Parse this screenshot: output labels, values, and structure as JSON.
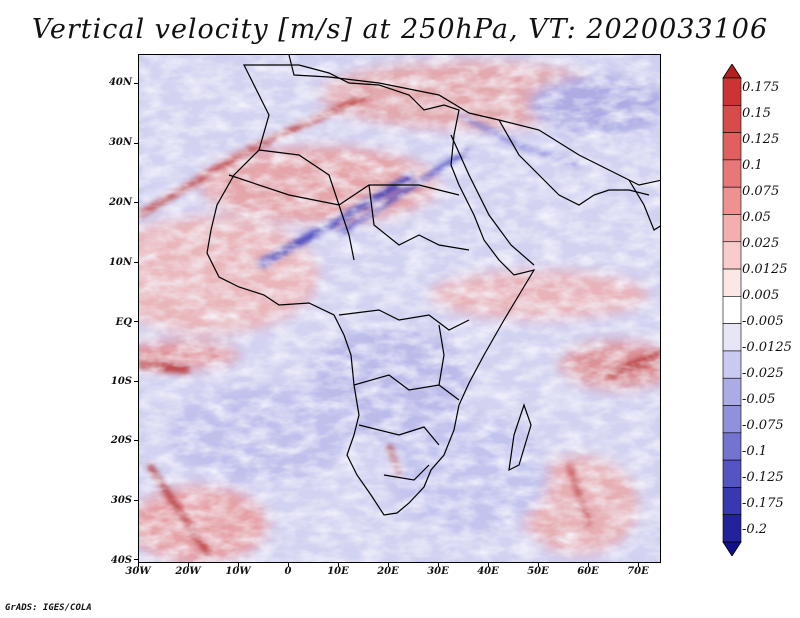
{
  "title": "Vertical velocity [m/s] at 250hPa, VT: 2020033106",
  "footer": "GrADS: IGES/COLA",
  "map": {
    "region": "Africa",
    "lat_labels": [
      "40N",
      "30N",
      "20N",
      "10N",
      "EQ",
      "10S",
      "20S",
      "30S",
      "40S"
    ],
    "lon_labels": [
      "30W",
      "20W",
      "10W",
      "0",
      "10E",
      "20E",
      "30E",
      "40E",
      "50E",
      "60E",
      "70E"
    ],
    "lon_range": [
      -30,
      75
    ],
    "lat_range": [
      -40,
      45
    ]
  },
  "colorbar": {
    "labels": [
      "0.175",
      "0.15",
      "0.125",
      "0.1",
      "0.075",
      "0.05",
      "0.025",
      "0.0125",
      "0.005",
      "-0.005",
      "-0.0125",
      "-0.025",
      "-0.05",
      "-0.075",
      "-0.1",
      "-0.125",
      "-0.175",
      "-0.2"
    ],
    "colors": [
      "#b41e1e",
      "#cc3434",
      "#d94a4a",
      "#e25f5f",
      "#e87878",
      "#ee9191",
      "#f3aeae",
      "#f8cccc",
      "#fce7e7",
      "#ffffff",
      "#e6e6f7",
      "#cacaf0",
      "#ababe6",
      "#9090dc",
      "#7373d0",
      "#5454c2",
      "#3838b0",
      "#22229a",
      "#10108a"
    ]
  }
}
